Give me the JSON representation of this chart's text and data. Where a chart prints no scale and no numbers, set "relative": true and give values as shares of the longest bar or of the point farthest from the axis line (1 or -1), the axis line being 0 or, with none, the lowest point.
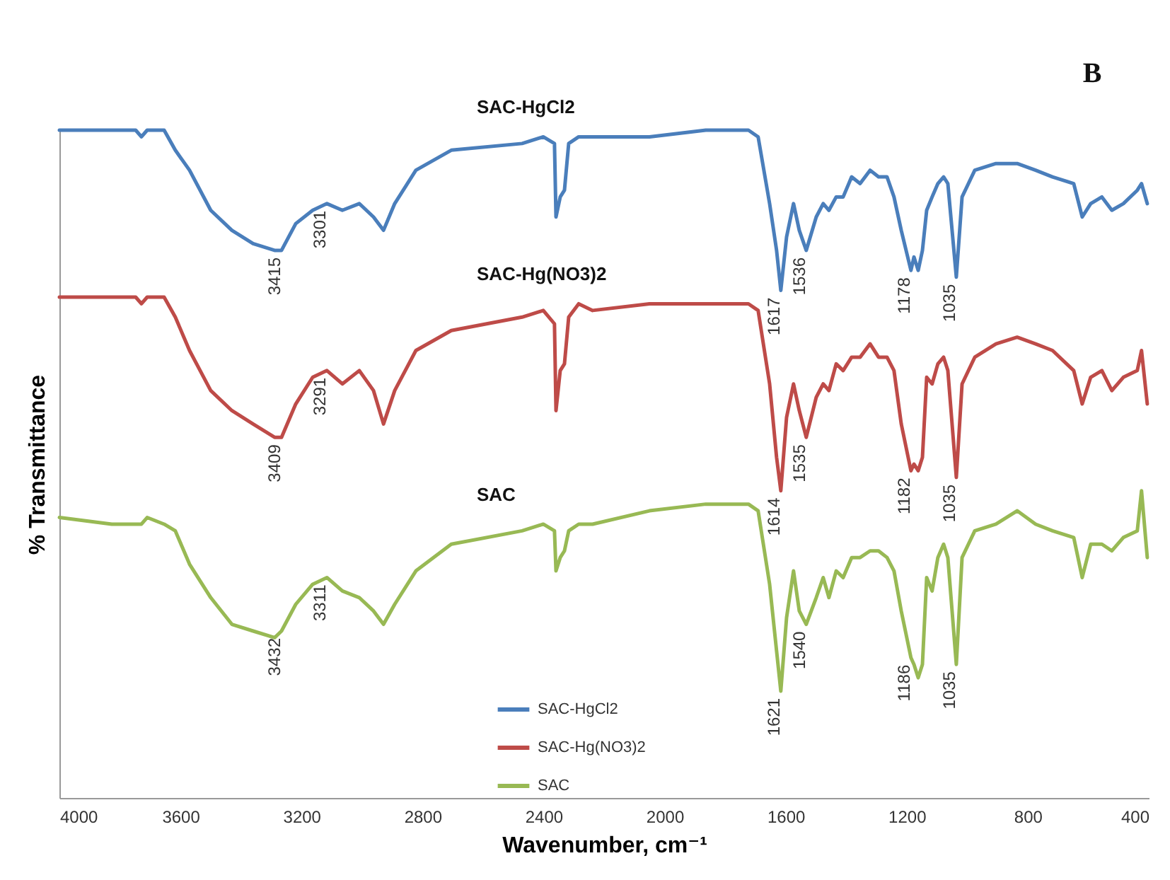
{
  "chart_data": {
    "type": "line",
    "relative": true,
    "xlabel": "Wavenumber, cm⁻¹",
    "ylabel": "% Transmittance",
    "xlim": [
      4000,
      400
    ],
    "xticks": [
      4000,
      3600,
      3200,
      2800,
      2400,
      2000,
      1600,
      1200,
      800,
      400
    ],
    "legend": "bottom",
    "x": [
      4000,
      3827,
      3748,
      3729,
      3710,
      3654,
      3617,
      3570,
      3500,
      3430,
      3360,
      3289,
      3266,
      3219,
      3163,
      3116,
      3065,
      3009,
      2962,
      2929,
      2892,
      2822,
      2705,
      2471,
      2401,
      2364,
      2359,
      2345,
      2331,
      2317,
      2284,
      2238,
      2050,
      1864,
      1723,
      1691,
      1653,
      1630,
      1616,
      1597,
      1574,
      1555,
      1532,
      1499,
      1476,
      1457,
      1433,
      1410,
      1382,
      1354,
      1321,
      1293,
      1265,
      1242,
      1218,
      1186,
      1176,
      1162,
      1148,
      1134,
      1116,
      1097,
      1078,
      1064,
      1036,
      1017,
      975,
      905,
      835,
      774,
      718,
      648,
      620,
      592,
      555,
      522,
      484,
      438,
      424,
      405
    ],
    "series": [
      {
        "name": "SAC-HgCl2",
        "color": "#4a7ebb",
        "values": [
          1.0,
          1.0,
          1.0,
          0.99,
          1.0,
          1.0,
          0.97,
          0.94,
          0.88,
          0.85,
          0.83,
          0.82,
          0.82,
          0.86,
          0.88,
          0.89,
          0.88,
          0.89,
          0.87,
          0.85,
          0.89,
          0.94,
          0.97,
          0.98,
          0.99,
          0.98,
          0.87,
          0.9,
          0.91,
          0.98,
          0.99,
          0.99,
          0.99,
          1.0,
          1.0,
          0.99,
          0.89,
          0.82,
          0.76,
          0.84,
          0.89,
          0.85,
          0.82,
          0.87,
          0.89,
          0.88,
          0.9,
          0.9,
          0.93,
          0.92,
          0.94,
          0.93,
          0.93,
          0.9,
          0.85,
          0.79,
          0.81,
          0.79,
          0.82,
          0.88,
          0.9,
          0.92,
          0.93,
          0.92,
          0.78,
          0.9,
          0.94,
          0.95,
          0.95,
          0.94,
          0.93,
          0.92,
          0.87,
          0.89,
          0.9,
          0.88,
          0.89,
          0.91,
          0.92,
          0.89
        ]
      },
      {
        "name": "SAC-Hg(NO3)2",
        "color": "#be4b48",
        "values": [
          0.75,
          0.75,
          0.75,
          0.74,
          0.75,
          0.75,
          0.72,
          0.67,
          0.61,
          0.58,
          0.56,
          0.54,
          0.54,
          0.59,
          0.63,
          0.64,
          0.62,
          0.64,
          0.61,
          0.56,
          0.61,
          0.67,
          0.7,
          0.72,
          0.73,
          0.71,
          0.58,
          0.64,
          0.65,
          0.72,
          0.74,
          0.73,
          0.74,
          0.74,
          0.74,
          0.73,
          0.62,
          0.51,
          0.46,
          0.57,
          0.62,
          0.58,
          0.54,
          0.6,
          0.62,
          0.61,
          0.65,
          0.64,
          0.66,
          0.66,
          0.68,
          0.66,
          0.66,
          0.64,
          0.56,
          0.49,
          0.5,
          0.49,
          0.51,
          0.63,
          0.62,
          0.65,
          0.66,
          0.64,
          0.48,
          0.62,
          0.66,
          0.68,
          0.69,
          0.68,
          0.67,
          0.64,
          0.59,
          0.63,
          0.64,
          0.61,
          0.63,
          0.64,
          0.67,
          0.59
        ]
      },
      {
        "name": "SAC",
        "color": "#98b954",
        "values": [
          0.42,
          0.41,
          0.41,
          0.41,
          0.42,
          0.41,
          0.4,
          0.35,
          0.3,
          0.26,
          0.25,
          0.24,
          0.25,
          0.29,
          0.32,
          0.33,
          0.31,
          0.3,
          0.28,
          0.26,
          0.29,
          0.34,
          0.38,
          0.4,
          0.41,
          0.4,
          0.34,
          0.36,
          0.37,
          0.4,
          0.41,
          0.41,
          0.43,
          0.44,
          0.44,
          0.43,
          0.32,
          0.22,
          0.16,
          0.27,
          0.34,
          0.28,
          0.26,
          0.3,
          0.33,
          0.3,
          0.34,
          0.33,
          0.36,
          0.36,
          0.37,
          0.37,
          0.36,
          0.34,
          0.28,
          0.21,
          0.2,
          0.18,
          0.2,
          0.33,
          0.31,
          0.36,
          0.38,
          0.36,
          0.2,
          0.36,
          0.4,
          0.41,
          0.43,
          0.41,
          0.4,
          0.39,
          0.33,
          0.38,
          0.38,
          0.37,
          0.39,
          0.4,
          0.46,
          0.36
        ]
      }
    ],
    "annotations": [
      "B",
      {
        "text": "3415",
        "x": 3266,
        "y": 0.82
      },
      {
        "text": "3301",
        "x": 3116,
        "y": 0.89
      },
      {
        "text": "1617",
        "x": 1616,
        "y": 0.76
      },
      {
        "text": "1536",
        "x": 1532,
        "y": 0.82
      },
      {
        "text": "1178",
        "x": 1186,
        "y": 0.79
      },
      {
        "text": "1035",
        "x": 1036,
        "y": 0.78
      },
      {
        "text": "3409",
        "x": 3266,
        "y": 0.54
      },
      {
        "text": "3291",
        "x": 3116,
        "y": 0.64
      },
      {
        "text": "1614",
        "x": 1616,
        "y": 0.46
      },
      {
        "text": "1535",
        "x": 1532,
        "y": 0.54
      },
      {
        "text": "1182",
        "x": 1186,
        "y": 0.49
      },
      {
        "text": "1035",
        "x": 1036,
        "y": 0.48
      },
      {
        "text": "3432",
        "x": 3266,
        "y": 0.25
      },
      {
        "text": "3311",
        "x": 3116,
        "y": 0.33
      },
      {
        "text": "1621",
        "x": 1616,
        "y": 0.16
      },
      {
        "text": "1540",
        "x": 1532,
        "y": 0.26
      },
      {
        "text": "1186",
        "x": 1186,
        "y": 0.21
      },
      {
        "text": "1035",
        "x": 1036,
        "y": 0.2
      }
    ]
  }
}
